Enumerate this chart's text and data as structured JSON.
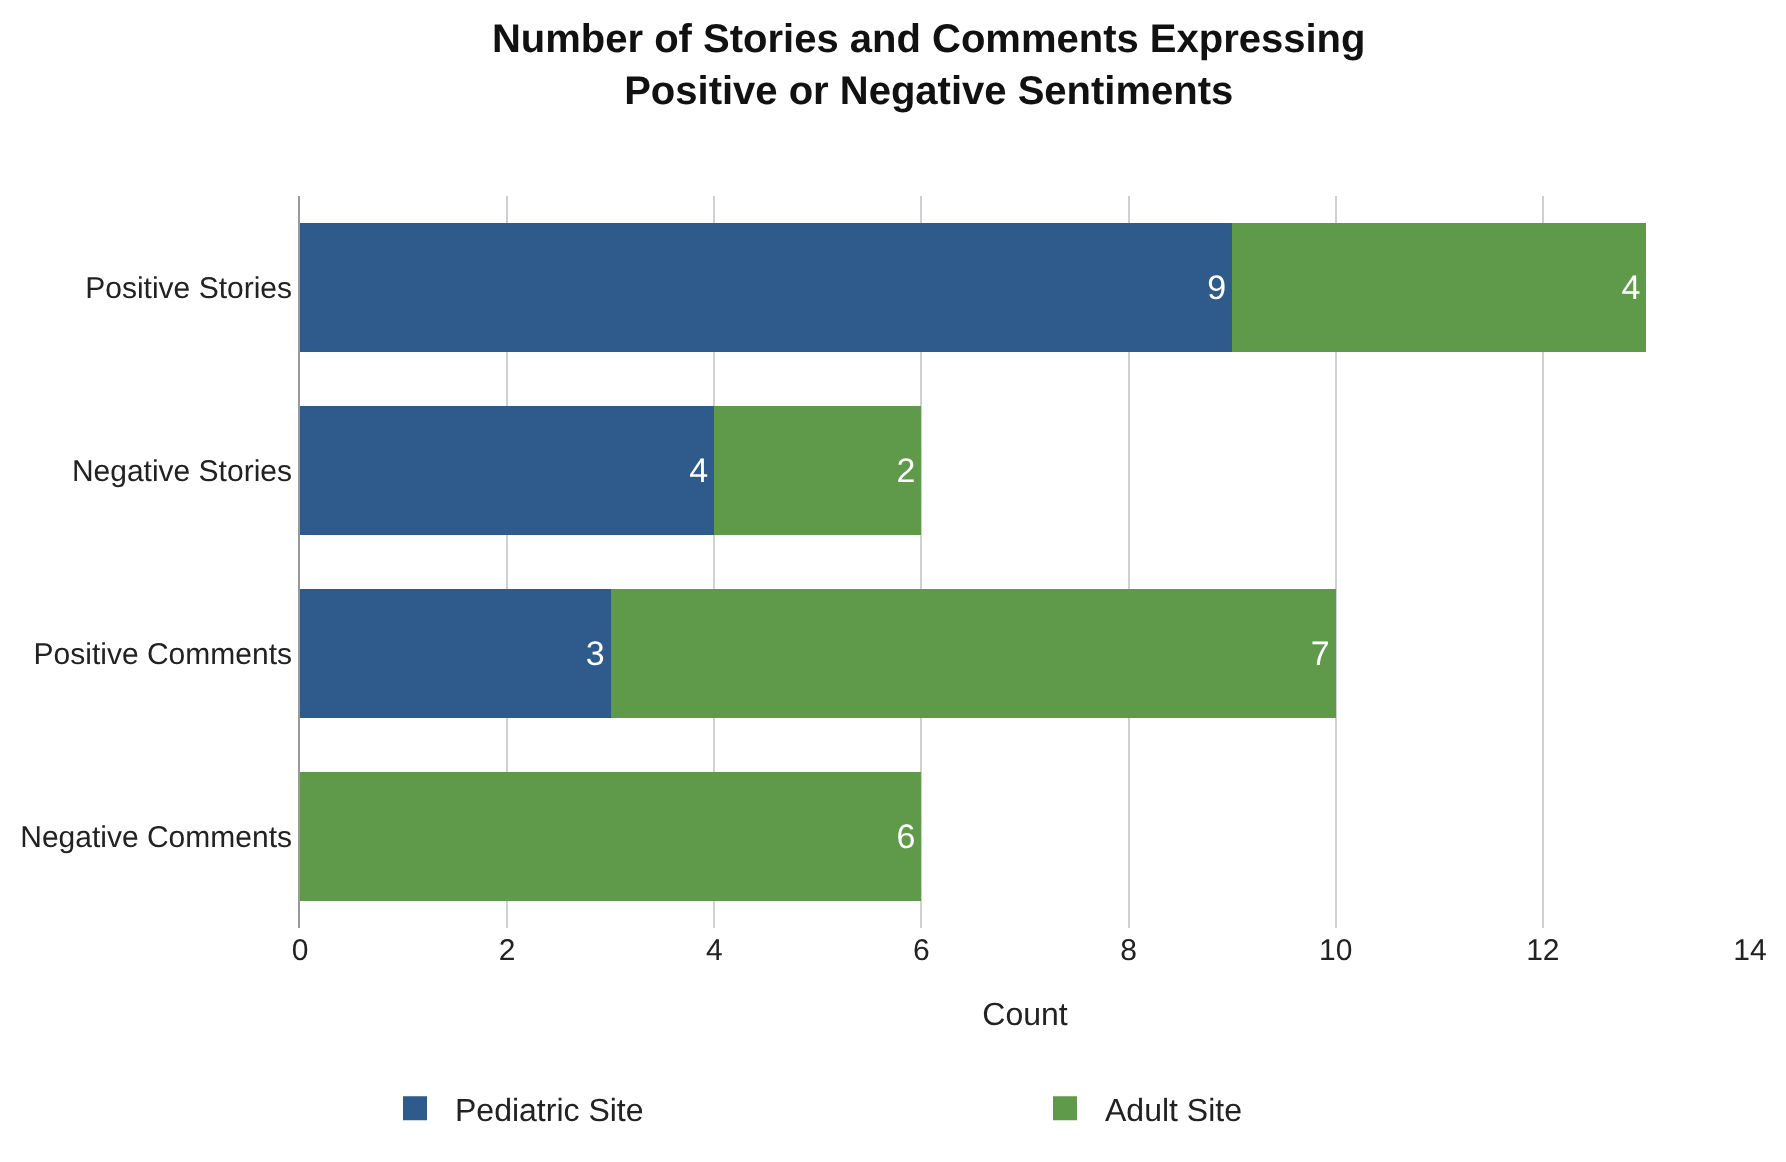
{
  "chart_data": {
    "type": "bar",
    "title": "Number of Stories and Comments Expressing Positive or Negative Sentiments",
    "xlabel": "Count",
    "orientation": "horizontal",
    "stacked": true,
    "categories": [
      "Positive Stories",
      "Negative Stories",
      "Positive Comments",
      "Negative Comments"
    ],
    "series": [
      {
        "name": "Pediatric Site",
        "color": "#2e5a8c",
        "values": [
          9,
          4,
          3,
          0
        ],
        "value_labels": [
          "9",
          "4",
          "3",
          null
        ]
      },
      {
        "name": "Adult Site",
        "color": "#5e9a4a",
        "values": [
          4,
          2,
          7,
          6
        ],
        "value_labels": [
          "4",
          "2",
          "7",
          "6"
        ]
      }
    ],
    "xlim": [
      0,
      14
    ],
    "xticks": [
      0,
      2,
      4,
      6,
      8,
      10,
      12,
      14
    ],
    "grid": "x",
    "legend": "bottom"
  }
}
